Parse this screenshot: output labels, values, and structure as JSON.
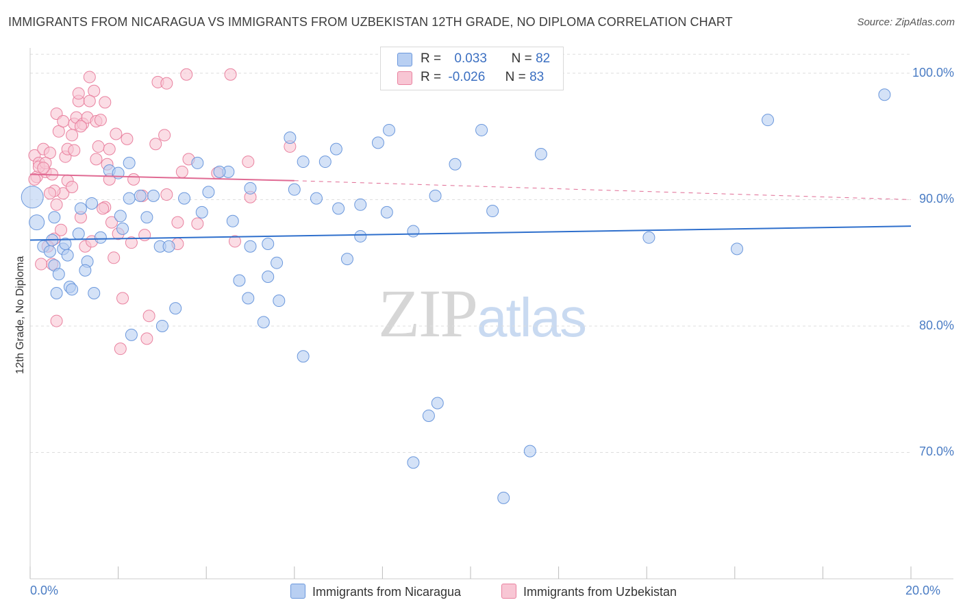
{
  "title": "IMMIGRANTS FROM NICARAGUA VS IMMIGRANTS FROM UZBEKISTAN 12TH GRADE, NO DIPLOMA CORRELATION CHART",
  "source": "Source: ZipAtlas.com",
  "watermark": {
    "zip": "ZIP",
    "atlas": "atlas"
  },
  "legend": {
    "rows": [
      {
        "r_label": "R =",
        "r_value": "0.033",
        "n_label": "N =",
        "n_value": "82"
      },
      {
        "r_label": "R =",
        "r_value": "-0.026",
        "n_label": "N =",
        "n_value": "83"
      }
    ]
  },
  "colors": {
    "blue_fill": "#b8cff2",
    "blue_stroke": "#6a97dc",
    "blue_line": "#2e6fcc",
    "pink_fill": "#f8c6d4",
    "pink_stroke": "#e9819f",
    "pink_line": "#e06a93",
    "grid": "#dddddd",
    "tick_text": "#4a7cc4"
  },
  "chart_data": {
    "type": "scatter",
    "title": "IMMIGRANTS FROM NICARAGUA VS IMMIGRANTS FROM UZBEKISTAN 12TH GRADE, NO DIPLOMA CORRELATION CHART",
    "xlabel": "",
    "ylabel": "12th Grade, No Diploma",
    "xlim": [
      0,
      20
    ],
    "ylim": [
      60,
      102
    ],
    "x_tick_labels": [
      "0.0%",
      "20.0%"
    ],
    "y_ticks": [
      70,
      80,
      90,
      100
    ],
    "y_tick_labels": [
      "70.0%",
      "80.0%",
      "90.0%",
      "100.0%"
    ],
    "grid": true,
    "legend_position": "top-center",
    "series": [
      {
        "name": "Immigrants from Nicaragua",
        "color": "#6a97dc",
        "trend": {
          "x": [
            0,
            20
          ],
          "y": [
            86.8,
            87.9
          ]
        },
        "points": [
          [
            0.05,
            90.2
          ],
          [
            0.15,
            88.2
          ],
          [
            0.3,
            86.3
          ],
          [
            0.45,
            85.9
          ],
          [
            0.55,
            84.8
          ],
          [
            0.5,
            86.8
          ],
          [
            0.55,
            88.6
          ],
          [
            0.75,
            86.1
          ],
          [
            0.85,
            85.6
          ],
          [
            0.65,
            84.1
          ],
          [
            0.8,
            86.5
          ],
          [
            0.6,
            82.6
          ],
          [
            0.9,
            83.1
          ],
          [
            0.95,
            82.9
          ],
          [
            1.1,
            87.3
          ],
          [
            1.15,
            89.3
          ],
          [
            1.3,
            85.1
          ],
          [
            1.25,
            84.4
          ],
          [
            1.45,
            82.6
          ],
          [
            1.6,
            87.0
          ],
          [
            1.8,
            92.3
          ],
          [
            2.25,
            92.9
          ],
          [
            2.0,
            92.1
          ],
          [
            2.25,
            90.1
          ],
          [
            2.05,
            88.7
          ],
          [
            2.1,
            87.7
          ],
          [
            2.5,
            90.3
          ],
          [
            2.8,
            90.3
          ],
          [
            2.95,
            86.3
          ],
          [
            2.65,
            88.6
          ],
          [
            3.15,
            86.3
          ],
          [
            3.3,
            81.4
          ],
          [
            3.5,
            90.1
          ],
          [
            3.9,
            89.0
          ],
          [
            3.8,
            92.9
          ],
          [
            4.05,
            90.6
          ],
          [
            4.5,
            92.2
          ],
          [
            4.3,
            92.2
          ],
          [
            4.6,
            88.3
          ],
          [
            4.75,
            83.6
          ],
          [
            5.0,
            90.9
          ],
          [
            5.0,
            86.3
          ],
          [
            4.95,
            82.2
          ],
          [
            5.4,
            86.5
          ],
          [
            5.6,
            85.0
          ],
          [
            5.3,
            80.3
          ],
          [
            5.4,
            83.9
          ],
          [
            5.65,
            82.0
          ],
          [
            5.9,
            94.9
          ],
          [
            6.0,
            90.8
          ],
          [
            6.2,
            93.0
          ],
          [
            6.2,
            77.6
          ],
          [
            6.7,
            93.0
          ],
          [
            6.5,
            90.1
          ],
          [
            6.95,
            94.0
          ],
          [
            7.0,
            89.3
          ],
          [
            7.5,
            89.6
          ],
          [
            7.2,
            85.3
          ],
          [
            7.5,
            87.1
          ],
          [
            7.9,
            94.5
          ],
          [
            8.15,
            95.5
          ],
          [
            8.1,
            89.0
          ],
          [
            8.7,
            87.5
          ],
          [
            9.2,
            90.3
          ],
          [
            9.05,
            72.9
          ],
          [
            9.25,
            73.9
          ],
          [
            9.65,
            92.8
          ],
          [
            10.25,
            95.5
          ],
          [
            10.5,
            89.1
          ],
          [
            11.35,
            70.1
          ],
          [
            10.75,
            66.4
          ],
          [
            11.6,
            93.6
          ],
          [
            14.05,
            87.0
          ],
          [
            16.05,
            86.1
          ],
          [
            16.75,
            96.3
          ],
          [
            19.4,
            98.3
          ],
          [
            8.7,
            69.2
          ],
          [
            3.0,
            80.0
          ],
          [
            2.3,
            79.3
          ],
          [
            1.4,
            89.7
          ]
        ]
      },
      {
        "name": "Immigrants from Uzbekistan",
        "color": "#e9819f",
        "trend": {
          "x": [
            0,
            6.0
          ],
          "y": [
            92.0,
            91.5
          ]
        },
        "trend_dashed": {
          "x": [
            6.0,
            20
          ],
          "y": [
            91.5,
            90.0
          ]
        },
        "points": [
          [
            0.1,
            93.5
          ],
          [
            0.15,
            91.8
          ],
          [
            0.2,
            92.9
          ],
          [
            0.35,
            92.2
          ],
          [
            0.3,
            94.0
          ],
          [
            0.45,
            93.7
          ],
          [
            0.5,
            92.0
          ],
          [
            0.6,
            89.6
          ],
          [
            0.55,
            86.9
          ],
          [
            0.4,
            86.3
          ],
          [
            0.5,
            84.9
          ],
          [
            0.65,
            95.4
          ],
          [
            0.6,
            96.8
          ],
          [
            0.75,
            96.2
          ],
          [
            0.8,
            93.4
          ],
          [
            0.85,
            94.0
          ],
          [
            0.85,
            91.5
          ],
          [
            0.75,
            90.5
          ],
          [
            0.7,
            87.6
          ],
          [
            1.0,
            96.0
          ],
          [
            1.0,
            93.9
          ],
          [
            1.05,
            96.5
          ],
          [
            1.1,
            97.8
          ],
          [
            1.1,
            98.4
          ],
          [
            1.2,
            96.0
          ],
          [
            1.3,
            96.5
          ],
          [
            1.35,
            99.7
          ],
          [
            1.45,
            98.6
          ],
          [
            1.5,
            96.2
          ],
          [
            1.55,
            94.2
          ],
          [
            1.5,
            93.2
          ],
          [
            1.6,
            96.3
          ],
          [
            1.7,
            97.7
          ],
          [
            1.8,
            94.0
          ],
          [
            1.8,
            91.6
          ],
          [
            1.7,
            89.4
          ],
          [
            1.85,
            88.2
          ],
          [
            1.9,
            85.4
          ],
          [
            1.25,
            86.3
          ],
          [
            1.15,
            88.6
          ],
          [
            1.95,
            95.2
          ],
          [
            2.0,
            87.3
          ],
          [
            2.1,
            82.2
          ],
          [
            2.05,
            78.2
          ],
          [
            2.3,
            86.6
          ],
          [
            2.35,
            91.6
          ],
          [
            2.55,
            90.3
          ],
          [
            2.6,
            87.2
          ],
          [
            2.7,
            80.8
          ],
          [
            2.65,
            79.0
          ],
          [
            2.9,
            99.3
          ],
          [
            2.85,
            94.4
          ],
          [
            3.05,
            95.1
          ],
          [
            3.1,
            99.2
          ],
          [
            3.1,
            90.4
          ],
          [
            3.35,
            88.2
          ],
          [
            3.45,
            92.2
          ],
          [
            3.6,
            93.2
          ],
          [
            3.55,
            99.9
          ],
          [
            3.35,
            86.5
          ],
          [
            3.8,
            88.1
          ],
          [
            4.25,
            92.1
          ],
          [
            4.55,
            99.9
          ],
          [
            4.65,
            86.7
          ],
          [
            4.95,
            93.0
          ],
          [
            5.0,
            90.2
          ],
          [
            5.9,
            94.2
          ],
          [
            0.2,
            92.6
          ],
          [
            0.35,
            92.9
          ],
          [
            0.95,
            91.0
          ],
          [
            0.55,
            90.7
          ],
          [
            0.25,
            84.9
          ],
          [
            0.6,
            80.4
          ],
          [
            0.45,
            90.5
          ],
          [
            1.4,
            86.7
          ],
          [
            1.65,
            89.3
          ],
          [
            0.1,
            91.6
          ],
          [
            0.3,
            92.5
          ],
          [
            0.95,
            95.1
          ],
          [
            1.15,
            95.8
          ],
          [
            1.35,
            97.8
          ],
          [
            2.2,
            94.8
          ],
          [
            1.75,
            92.8
          ]
        ]
      }
    ]
  },
  "bottom_legend": [
    {
      "label": "Immigrants from Nicaragua"
    },
    {
      "label": "Immigrants from Uzbekistan"
    }
  ]
}
